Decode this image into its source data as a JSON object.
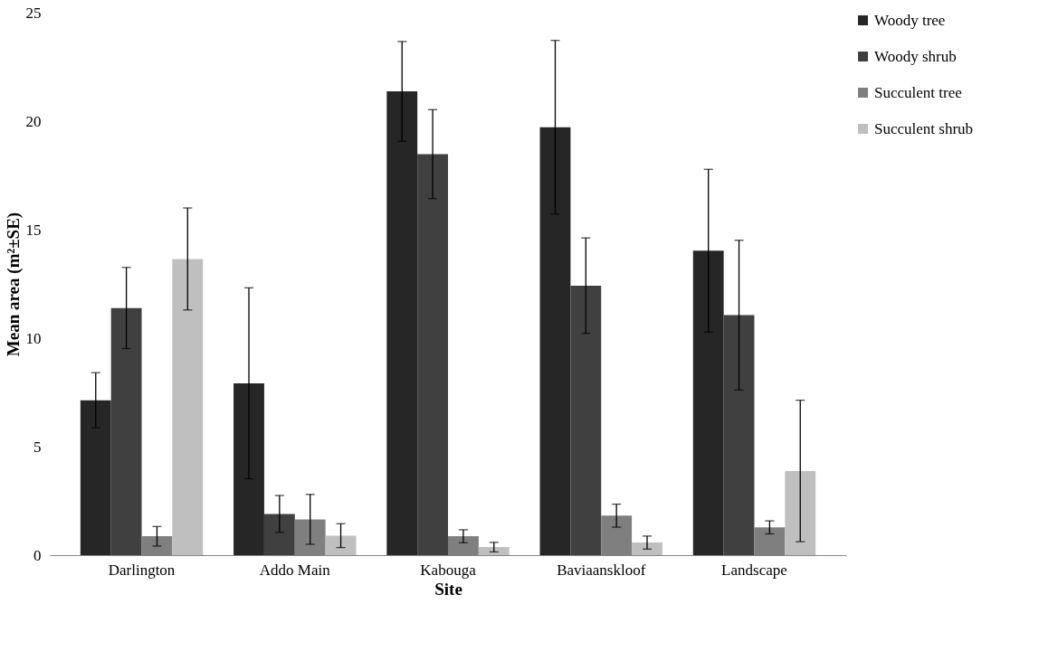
{
  "chart_data": {
    "type": "bar",
    "xlabel": "Site",
    "ylabel": "Mean area  (m²±SE)",
    "categories": [
      "Darlington",
      "Addo Main",
      "Kabouga",
      "Baviaanskloof",
      "Landscape"
    ],
    "series": [
      {
        "name": "Woody tree",
        "color": "#262626",
        "values": [
          7.14,
          7.92,
          21.37,
          19.72,
          14.03
        ],
        "errors": [
          1.27,
          4.4,
          2.3,
          4.0,
          3.75
        ]
      },
      {
        "name": "Woody shrub",
        "color": "#404040",
        "values": [
          11.39,
          1.9,
          18.48,
          12.42,
          11.06
        ],
        "errors": [
          1.87,
          0.85,
          2.05,
          2.2,
          3.45
        ]
      },
      {
        "name": "Succulent tree",
        "color": "#7f7f7f",
        "values": [
          0.87,
          1.65,
          0.87,
          1.82,
          1.28
        ],
        "errors": [
          0.45,
          1.15,
          0.3,
          0.53,
          0.3
        ]
      },
      {
        "name": "Succulent shrub",
        "color": "#bfbfbf",
        "values": [
          13.65,
          0.9,
          0.37,
          0.58,
          3.88
        ],
        "errors": [
          2.35,
          0.55,
          0.22,
          0.3,
          3.26
        ]
      }
    ],
    "ylim": [
      0,
      25
    ],
    "yticks": [
      0,
      5,
      10,
      15,
      20,
      25
    ],
    "grid": false,
    "legend": "top right"
  }
}
